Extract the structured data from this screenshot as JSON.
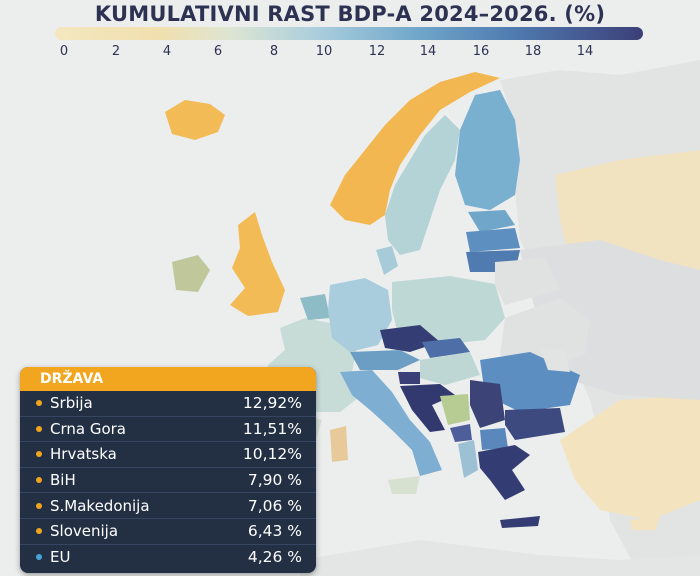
{
  "title": "KUMULATIVNI RAST BDP-A 2024–2026. (%)",
  "scale": {
    "ticks": [
      "0",
      "2",
      "4",
      "6",
      "8",
      "10",
      "12",
      "14",
      "16",
      "18",
      "14"
    ],
    "colors": [
      "#f4e7bf",
      "#f1dfae",
      "#dce5d3",
      "#a9cddd",
      "#6fa6c9",
      "#4f7bb0",
      "#3c3f78"
    ]
  },
  "table": {
    "header": "DRŽAVA",
    "rows": [
      {
        "country": "Srbija",
        "value": "12,92%",
        "dot": "#f2a51f"
      },
      {
        "country": "Crna Gora",
        "value": "11,51%",
        "dot": "#f2a51f"
      },
      {
        "country": "Hrvatska",
        "value": "10,12%",
        "dot": "#f2a51f"
      },
      {
        "country": "BiH",
        "value": "7,90 %",
        "dot": "#f2a51f"
      },
      {
        "country": "S.Makedonija",
        "value": "7,06 %",
        "dot": "#f2a51f"
      },
      {
        "country": "Slovenija",
        "value": "6,43 %",
        "dot": "#f2a51f"
      },
      {
        "country": "EU",
        "value": "4,26 %",
        "dot": "#4aa3d8"
      }
    ]
  }
}
